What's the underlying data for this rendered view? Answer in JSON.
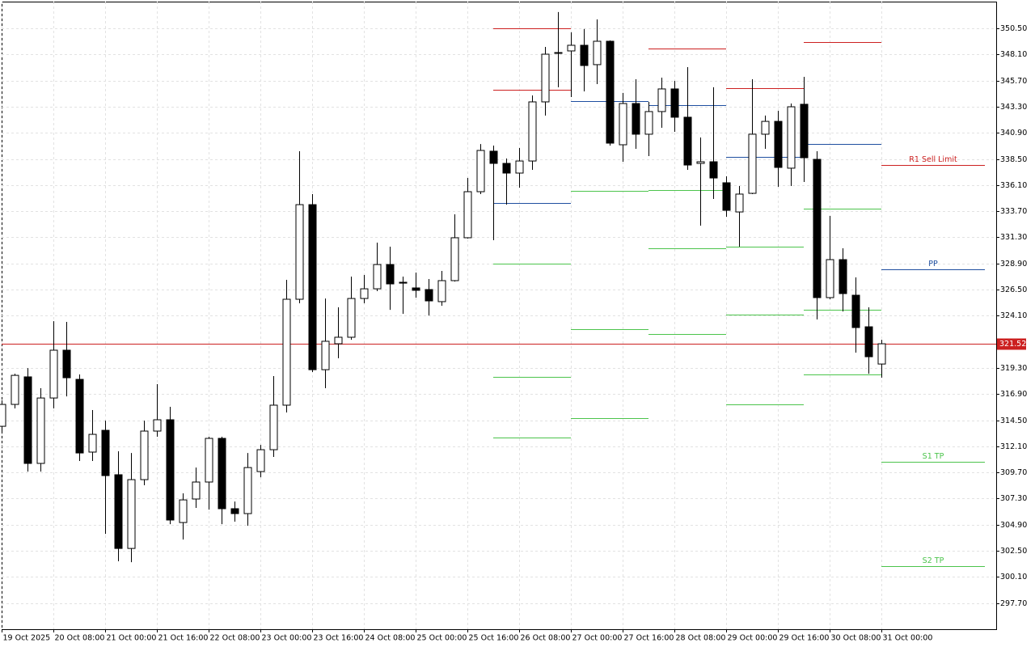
{
  "chart_data": {
    "type": "candlestick",
    "categories": [
      "19 Oct 2025",
      null,
      null,
      null,
      "20 Oct 08:00",
      null,
      null,
      null,
      "21 Oct 00:00",
      null,
      null,
      null,
      "21 Oct 16:00",
      null,
      null,
      null,
      "22 Oct 08:00",
      null,
      null,
      null,
      "23 Oct 00:00",
      null,
      null,
      null,
      "23 Oct 16:00",
      null,
      null,
      null,
      "24 Oct 08:00",
      null,
      null,
      null,
      "25 Oct 00:00",
      null,
      null,
      null,
      "25 Oct 16:00",
      null,
      null,
      null,
      "26 Oct 08:00",
      null,
      null,
      null,
      "27 Oct 00:00",
      null,
      null,
      null,
      "27 Oct 16:00",
      null,
      null,
      null,
      "28 Oct 08:00",
      null,
      null,
      null,
      "29 Oct 00:00",
      null,
      null,
      null,
      "29 Oct 16:00",
      null,
      null,
      null,
      "30 Oct 08:00",
      null,
      null,
      null,
      "31 Oct 00:00"
    ],
    "open": [
      313.94,
      315.95,
      318.48,
      310.53,
      316.54,
      320.93,
      318.25,
      311.57,
      313.57,
      309.49,
      302.72,
      309.04,
      313.5,
      314.54,
      305.1,
      307.26,
      308.82,
      312.83,
      306.37,
      305.92,
      309.78,
      311.79,
      315.88,
      325.61,
      334.3,
      319.14,
      321.52,
      322.12,
      325.68,
      326.57,
      328.8,
      327.17,
      326.65,
      326.5,
      325.39,
      327.32,
      331.26,
      335.49,
      339.21,
      338.09,
      337.2,
      338.31,
      343.74,
      348.2,
      348.42,
      348.94,
      347.16,
      349.31,
      339.8,
      343.59,
      340.77,
      342.85,
      344.93,
      342.33,
      338.09,
      338.24,
      336.31,
      333.63,
      335.34,
      340.77,
      341.95,
      337.65,
      343.52,
      338.46,
      325.76,
      329.25,
      325.98,
      323.08,
      319.66
    ],
    "high": [
      316.32,
      318.77,
      319.29,
      317.44,
      323.6,
      323.53,
      318.7,
      315.43,
      314.46,
      311.64,
      311.49,
      314.46,
      317.81,
      315.73,
      307.78,
      310.15,
      312.98,
      312.98,
      307.03,
      311.49,
      312.23,
      318.55,
      327.39,
      339.21,
      335.27,
      325.68,
      324.87,
      327.69,
      327.84,
      330.81,
      330.44,
      327.69,
      328.06,
      327.47,
      328.21,
      333.41,
      336.75,
      339.87,
      339.73,
      338.54,
      339.5,
      344.33,
      348.79,
      351.99,
      350.13,
      350.43,
      351.32,
      349.38,
      344.56,
      345.82,
      343.74,
      345.97,
      345.67,
      346.93,
      340.47,
      345.08,
      336.9,
      336.01,
      345.82,
      342.48,
      342.92,
      343.59,
      346.04,
      339.21,
      333.26,
      330.29,
      327.62,
      324.87,
      321.89
    ],
    "low": [
      313.35,
      315.58,
      309.78,
      309.78,
      315.58,
      316.69,
      310.75,
      310.75,
      304.06,
      301.54,
      301.46,
      308.52,
      312.98,
      304.95,
      303.54,
      306.44,
      306.29,
      304.95,
      305.18,
      304.8,
      309.26,
      311.12,
      315.21,
      325.24,
      318.92,
      317.44,
      320.19,
      321.89,
      325.24,
      326.35,
      324.64,
      324.27,
      325.76,
      324.12,
      325.01,
      327.24,
      331.18,
      335.27,
      331.03,
      334.3,
      335.86,
      337.5,
      342.48,
      345.08,
      344.18,
      344.7,
      345.37,
      339.73,
      338.24,
      339.43,
      338.76,
      341.36,
      340.99,
      337.5,
      332.37,
      334.82,
      333.19,
      330.44,
      335.27,
      339.43,
      335.94,
      336.01,
      336.38,
      323.75,
      325.61,
      324.49,
      320.71,
      318.77,
      318.4
    ],
    "close": [
      315.95,
      318.62,
      310.53,
      316.54,
      320.93,
      318.4,
      311.49,
      313.2,
      309.41,
      302.72,
      309.04,
      313.5,
      314.54,
      305.33,
      307.18,
      308.82,
      312.83,
      306.37,
      305.92,
      310.15,
      311.79,
      315.88,
      325.61,
      334.3,
      319.14,
      321.75,
      322.12,
      325.68,
      326.57,
      328.8,
      327.02,
      327.09,
      326.43,
      325.46,
      327.32,
      331.26,
      335.49,
      339.28,
      338.09,
      337.2,
      338.31,
      343.74,
      348.12,
      348.27,
      348.94,
      347.08,
      349.31,
      339.95,
      343.59,
      340.77,
      342.85,
      344.93,
      342.33,
      337.94,
      338.24,
      336.75,
      333.78,
      335.27,
      340.77,
      341.95,
      337.72,
      343.29,
      338.61,
      325.76,
      329.25,
      326.13,
      323.01,
      320.33,
      321.52
    ],
    "up_color": "#ffffff",
    "down_color": "#000000",
    "ylim": [
      295.3,
      352.95
    ],
    "yticks": [
      {
        "value": 350.5,
        "label": "350.50"
      },
      {
        "value": 348.1,
        "label": "348.10"
      },
      {
        "value": 345.7,
        "label": "345.70"
      },
      {
        "value": 343.3,
        "label": "343.30"
      },
      {
        "value": 340.9,
        "label": "340.90"
      },
      {
        "value": 338.5,
        "label": "338.50"
      },
      {
        "value": 336.1,
        "label": "336.10"
      },
      {
        "value": 333.7,
        "label": "333.70"
      },
      {
        "value": 331.3,
        "label": "331.30"
      },
      {
        "value": 328.9,
        "label": "328.90"
      },
      {
        "value": 326.5,
        "label": "326.50"
      },
      {
        "value": 324.1,
        "label": "324.10"
      },
      {
        "value": 319.3,
        "label": "319.30"
      },
      {
        "value": 316.9,
        "label": "316.90"
      },
      {
        "value": 314.5,
        "label": "314.50"
      },
      {
        "value": 312.1,
        "label": "312.10"
      },
      {
        "value": 309.7,
        "label": "309.70"
      },
      {
        "value": 307.3,
        "label": "307.30"
      },
      {
        "value": 304.9,
        "label": "304.90"
      },
      {
        "value": 302.5,
        "label": "302.50"
      },
      {
        "value": 300.1,
        "label": "300.10"
      },
      {
        "value": 297.7,
        "label": "297.70"
      }
    ],
    "grid": true,
    "price_line": {
      "value": 321.52,
      "label": "321.52",
      "color": "#cc2020"
    },
    "pivot_periods": [
      {
        "from": 38,
        "levels": [
          {
            "value": 350.5,
            "color": "#cc2020"
          },
          {
            "value": 344.85,
            "color": "#cc2020"
          },
          {
            "value": 334.45,
            "color": "#1f4fa0"
          },
          {
            "value": 328.88,
            "color": "#4cc44c"
          },
          {
            "value": 318.48,
            "color": "#4cc44c"
          },
          {
            "value": 312.9,
            "color": "#4cc44c"
          }
        ]
      },
      {
        "from": 44,
        "levels": [
          {
            "value": 343.81,
            "color": "#1f4fa0"
          },
          {
            "value": 335.57,
            "color": "#4cc44c"
          },
          {
            "value": 322.86,
            "color": "#4cc44c"
          },
          {
            "value": 314.69,
            "color": "#4cc44c"
          }
        ]
      },
      {
        "from": 50,
        "levels": [
          {
            "value": 348.64,
            "color": "#cc2020"
          },
          {
            "value": 343.44,
            "color": "#1f4fa0"
          },
          {
            "value": 335.64,
            "color": "#4cc44c"
          },
          {
            "value": 330.29,
            "color": "#4cc44c"
          },
          {
            "value": 322.41,
            "color": "#4cc44c"
          }
        ]
      },
      {
        "from": 56,
        "levels": [
          {
            "value": 345.0,
            "color": "#cc2020"
          },
          {
            "value": 338.69,
            "color": "#1f4fa0"
          },
          {
            "value": 330.44,
            "color": "#4cc44c"
          },
          {
            "value": 324.2,
            "color": "#4cc44c"
          },
          {
            "value": 315.95,
            "color": "#4cc44c"
          }
        ]
      },
      {
        "from": 62,
        "levels": [
          {
            "value": 349.24,
            "color": "#cc2020"
          },
          {
            "value": 339.87,
            "color": "#1f4fa0"
          },
          {
            "value": 333.93,
            "color": "#4cc44c"
          },
          {
            "value": 324.64,
            "color": "#4cc44c"
          },
          {
            "value": 318.7,
            "color": "#4cc44c"
          }
        ]
      },
      {
        "from": 68,
        "levels": [
          {
            "value": 337.94,
            "color": "#cc2020",
            "label": "R1 Sell Limit"
          },
          {
            "value": 328.36,
            "color": "#1f4fa0",
            "label": "PP"
          },
          {
            "value": 310.67,
            "color": "#4cc44c",
            "label": "S1 TP"
          },
          {
            "value": 301.09,
            "color": "#4cc44c",
            "label": "S2 TP"
          }
        ]
      }
    ]
  }
}
